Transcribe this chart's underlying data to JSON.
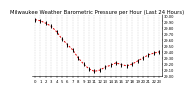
{
  "title": "Milwaukee Weather Barometric Pressure per Hour (Last 24 Hours)",
  "pressure_values": [
    29.93,
    29.91,
    29.87,
    29.82,
    29.73,
    29.61,
    29.52,
    29.43,
    29.3,
    29.2,
    29.12,
    29.08,
    29.1,
    29.15,
    29.18,
    29.22,
    29.19,
    29.17,
    29.2,
    29.25,
    29.3,
    29.35,
    29.38,
    29.4
  ],
  "line_color": "#dd0000",
  "marker_color": "#000000",
  "grid_color": "#bbbbbb",
  "background_color": "#ffffff",
  "ylim_min": 29.0,
  "ylim_max": 30.0,
  "ytick_values": [
    29.0,
    29.1,
    29.2,
    29.3,
    29.4,
    29.5,
    29.6,
    29.7,
    29.8,
    29.9,
    30.0
  ],
  "xtick_positions": [
    0,
    1,
    2,
    3,
    4,
    5,
    6,
    7,
    8,
    9,
    10,
    11,
    12,
    13,
    14,
    15,
    16,
    17,
    18,
    19,
    20,
    21,
    22,
    23
  ],
  "title_fontsize": 3.8,
  "tick_fontsize": 2.8,
  "ytick_fontsize": 2.6
}
